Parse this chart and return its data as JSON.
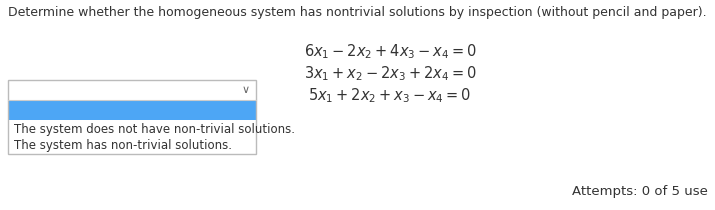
{
  "title": "Determine whether the homogeneous system has nontrivial solutions by inspection (without pencil and paper).",
  "equation1": "$6x_1 - 2x_2 + 4x_3 - x_4 = 0$",
  "equation2": "$3x_1 + x_2 - 2x_3 + 2x_4 = 0$",
  "equation3": "$5x_1 + 2x_2 + x_3 - x_4 = 0$",
  "dropdown_option1": "The system does not have non-trivial solutions.",
  "dropdown_option2": "The system has non-trivial solutions.",
  "attempts_text": "Attempts: 0 of 5 use",
  "bg_color": "#ffffff",
  "title_color": "#333333",
  "eq_color": "#333333",
  "dropdown_border": "#bbbbbb",
  "dropdown_highlight": "#4da6f5",
  "dropdown_text_color": "#333333",
  "title_fontsize": 9.0,
  "eq_fontsize": 10.5,
  "small_fontsize": 8.5,
  "attempts_fontsize": 9.5,
  "chevron": "∨"
}
